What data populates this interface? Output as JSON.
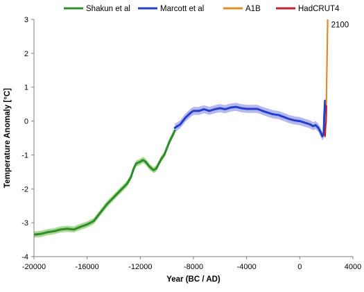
{
  "chart_data": {
    "type": "line",
    "xlabel": "Year (BC / AD)",
    "ylabel": "Temperature Anomaly [°C]",
    "xlim": [
      -20000,
      4000
    ],
    "ylim": [
      -4,
      3
    ],
    "xticks": [
      -20000,
      -16000,
      -12000,
      -8000,
      -4000,
      0,
      4000
    ],
    "yticks": [
      -4,
      -3,
      -2,
      -1,
      0,
      1,
      2,
      3
    ],
    "grid": false,
    "legend_position": "top",
    "annotations": [
      {
        "text": "2100",
        "x": 2100,
        "y": 2.85
      }
    ],
    "series": [
      {
        "name": "Shakun et al",
        "color": "#2e8b2e",
        "band_color": "#a9d98f",
        "band_halfwidth": 0.09,
        "x": [
          -20000,
          -19500,
          -19000,
          -18500,
          -18000,
          -17500,
          -17000,
          -16500,
          -16000,
          -15500,
          -15000,
          -14500,
          -14000,
          -13500,
          -13000,
          -12700,
          -12500,
          -12300,
          -12000,
          -11800,
          -11600,
          -11300,
          -11000,
          -10800,
          -10600,
          -10400,
          -10200,
          -10000,
          -9800,
          -9600,
          -9400
        ],
        "values": [
          -3.35,
          -3.33,
          -3.28,
          -3.25,
          -3.2,
          -3.18,
          -3.2,
          -3.12,
          -3.05,
          -2.95,
          -2.7,
          -2.45,
          -2.25,
          -2.05,
          -1.85,
          -1.65,
          -1.4,
          -1.25,
          -1.2,
          -1.15,
          -1.2,
          -1.35,
          -1.45,
          -1.4,
          -1.25,
          -1.1,
          -1.0,
          -0.8,
          -0.6,
          -0.45,
          -0.28
        ]
      },
      {
        "name": "Marcott et al",
        "color": "#1f3fcc",
        "band_color": "#b7b7f0",
        "band_halfwidth": 0.12,
        "x": [
          -9400,
          -9000,
          -8600,
          -8200,
          -8000,
          -7600,
          -7200,
          -6800,
          -6400,
          -6000,
          -5600,
          -5200,
          -4800,
          -4400,
          -4000,
          -3600,
          -3200,
          -2800,
          -2400,
          -2000,
          -1600,
          -1200,
          -800,
          -400,
          0,
          400,
          800,
          1000,
          1200,
          1400,
          1600,
          1700,
          1800,
          1850,
          1900,
          1950
        ],
        "values": [
          -0.2,
          -0.1,
          0.1,
          0.25,
          0.3,
          0.3,
          0.35,
          0.3,
          0.35,
          0.38,
          0.35,
          0.4,
          0.42,
          0.38,
          0.36,
          0.36,
          0.36,
          0.3,
          0.25,
          0.2,
          0.18,
          0.12,
          0.06,
          0.02,
          0.0,
          -0.05,
          -0.1,
          -0.15,
          -0.12,
          -0.2,
          -0.35,
          -0.45,
          -0.38,
          0.2,
          0.6,
          0.3
        ]
      },
      {
        "name": "A1B",
        "color": "#e08a2a",
        "x": [
          2000,
          2025,
          2050,
          2075,
          2100
        ],
        "values": [
          0.5,
          1.1,
          1.7,
          2.3,
          3.0
        ]
      },
      {
        "name": "HadCRUT4",
        "color": "#c0202a",
        "x": [
          1850,
          1875,
          1900,
          1925,
          1950,
          1975,
          2000,
          2012
        ],
        "values": [
          -0.38,
          -0.32,
          -0.45,
          -0.3,
          -0.1,
          -0.05,
          0.3,
          0.45
        ]
      }
    ]
  }
}
